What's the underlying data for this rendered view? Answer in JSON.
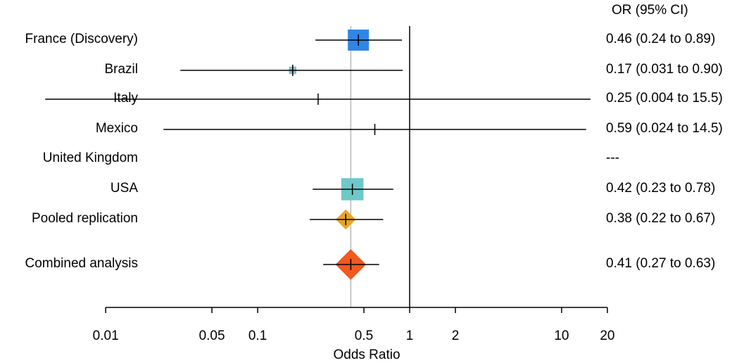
{
  "chart_data": {
    "type": "forest",
    "right_header": "OR (95% CI)",
    "xlabel": "Odds Ratio",
    "x_scale": "log",
    "xlim": [
      0.01,
      20
    ],
    "x_ticks": [
      0.01,
      0.05,
      0.1,
      0.5,
      1,
      2,
      10,
      20
    ],
    "x_tick_labels": [
      "0.01",
      "0.05",
      "0.1",
      "0.5",
      "1",
      "2",
      "10",
      "20"
    ],
    "reference_line": 1,
    "pooled_reference_line": 0.41,
    "rows": [
      {
        "label": "France (Discovery)",
        "or": 0.46,
        "lo": 0.24,
        "hi": 0.89,
        "text": "0.46 (0.24 to 0.89)",
        "marker": "square",
        "weight": 1.0,
        "color": "#2f86e6"
      },
      {
        "label": "Brazil",
        "or": 0.17,
        "lo": 0.031,
        "hi": 0.9,
        "text": "0.17 (0.031 to 0.90)",
        "marker": "square",
        "weight": 0.35,
        "color": "#7fbfc4"
      },
      {
        "label": "Italy",
        "or": 0.25,
        "lo": 0.004,
        "hi": 15.5,
        "text": "0.25 (0.004 to 15.5)",
        "marker": "square",
        "weight": 0.0,
        "color": "#6fc8c8"
      },
      {
        "label": "Mexico",
        "or": 0.59,
        "lo": 0.024,
        "hi": 14.5,
        "text": "0.59 (0.024 to 14.5)",
        "marker": "square",
        "weight": 0.0,
        "color": "#6fc8c8"
      },
      {
        "label": "United Kingdom",
        "or": null,
        "lo": null,
        "hi": null,
        "text": "---",
        "marker": "none",
        "weight": 0,
        "color": "#6fc8c8"
      },
      {
        "label": "USA",
        "or": 0.42,
        "lo": 0.23,
        "hi": 0.78,
        "text": "0.42 (0.23 to 0.78)",
        "marker": "square",
        "weight": 1.05,
        "color": "#6fc8c8"
      },
      {
        "label": "Pooled replication",
        "or": 0.38,
        "lo": 0.22,
        "hi": 0.67,
        "text": "0.38 (0.22 to 0.67)",
        "marker": "diamond",
        "weight": 0.75,
        "color": "#e8a524"
      },
      {
        "label": "Combined analysis",
        "or": 0.41,
        "lo": 0.27,
        "hi": 0.63,
        "text": "0.41 (0.27 to 0.63)",
        "marker": "diamond",
        "weight": 1.15,
        "color": "#f05a1e"
      }
    ]
  }
}
